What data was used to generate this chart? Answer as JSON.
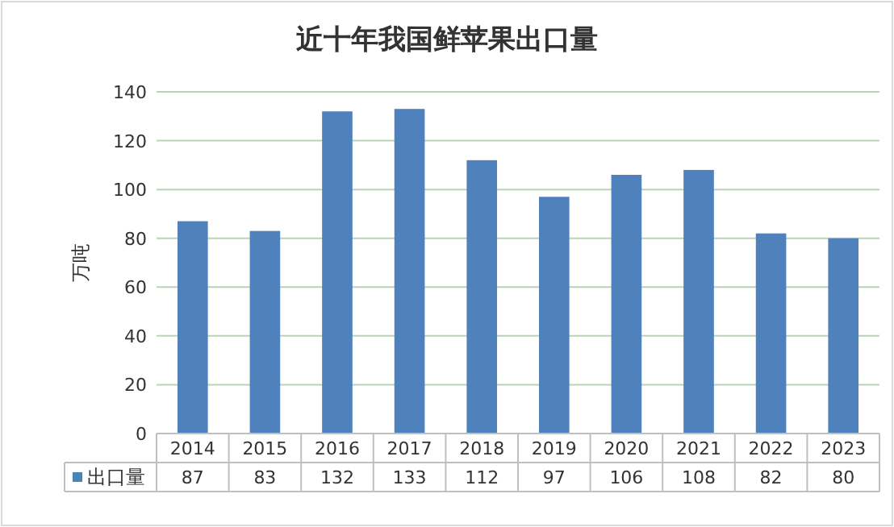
{
  "chart_data": {
    "type": "bar",
    "title": "近十年我国鲜苹果出口量",
    "ylabel": "万吨",
    "categories": [
      "2014",
      "2015",
      "2016",
      "2017",
      "2018",
      "2019",
      "2020",
      "2021",
      "2022",
      "2023"
    ],
    "series": [
      {
        "name": "出口量",
        "color": "#4f81bd",
        "values": [
          87,
          83,
          132,
          133,
          112,
          97,
          106,
          108,
          82,
          80
        ]
      }
    ],
    "ylim": [
      0,
      140
    ],
    "yticks": [
      0,
      20,
      40,
      60,
      80,
      100,
      120,
      140
    ],
    "grid": "y",
    "legend": "bottom",
    "data_labels": true
  }
}
